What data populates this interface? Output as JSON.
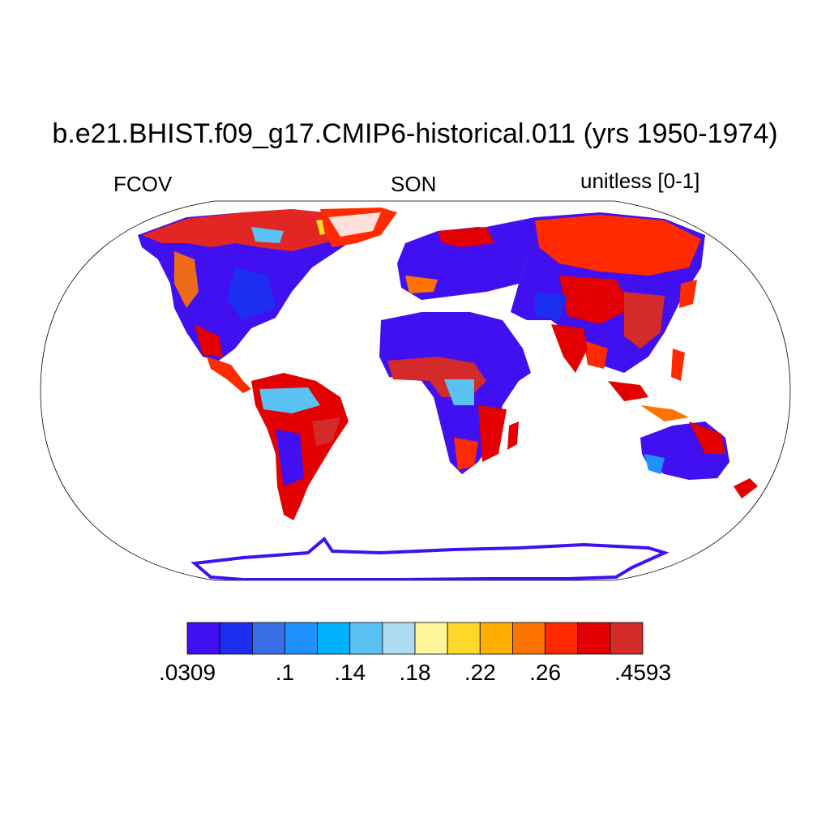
{
  "title": "b.e21.BHIST.f09_g17.CMIP6-historical.011 (yrs 1950-1974)",
  "left_label": "FCOV",
  "center_label": "SON",
  "right_label": "unitless [0-1]",
  "colorbar": {
    "colors": [
      "#4010f0",
      "#1c2ef0",
      "#3a6ee6",
      "#1e90ff",
      "#00b2ff",
      "#5ac2f2",
      "#b0dcf2",
      "#fff59a",
      "#ffd82a",
      "#ffae00",
      "#ff7400",
      "#ff2a00",
      "#e20000",
      "#d42a2a"
    ],
    "labels": [
      {
        "text": ".0309",
        "boundary": 0
      },
      {
        "text": ".1",
        "boundary": 3
      },
      {
        "text": ".14",
        "boundary": 5
      },
      {
        "text": ".18",
        "boundary": 7
      },
      {
        "text": ".22",
        "boundary": 9
      },
      {
        "text": ".26",
        "boundary": 11
      },
      {
        "text": ".4593",
        "boundary": 14
      }
    ]
  }
}
